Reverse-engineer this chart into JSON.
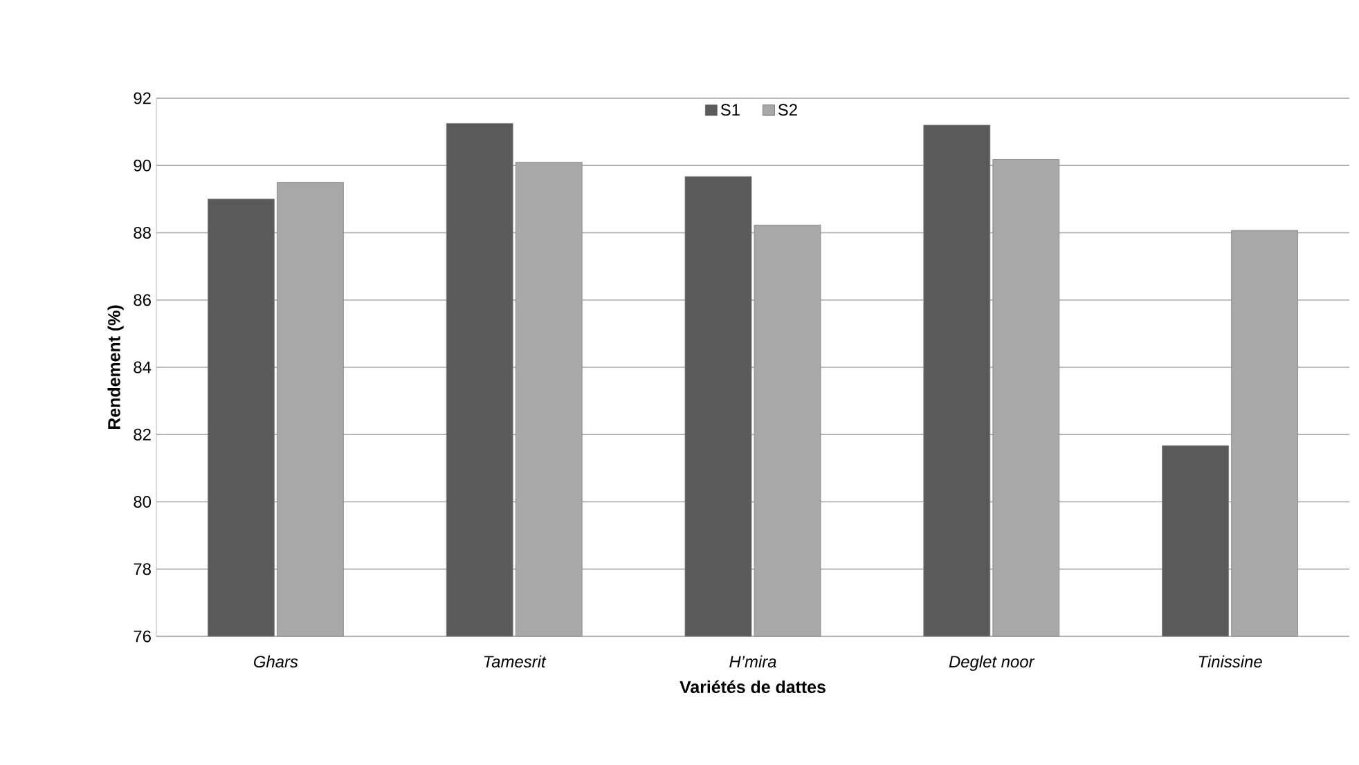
{
  "chart_data": {
    "type": "bar",
    "xlabel": "Variétés de dattes",
    "ylabel": "Rendement (%)",
    "categories": [
      "Ghars",
      "Tamesrit",
      "H’mira",
      "Deglet noor",
      "Tinissine"
    ],
    "series": [
      {
        "name": "S1",
        "color": "#5a5a5a",
        "values": [
          89.0,
          91.25,
          89.67,
          91.2,
          81.67
        ]
      },
      {
        "name": "S2",
        "color": "#a8a8a8",
        "values": [
          89.5,
          90.1,
          88.23,
          90.18,
          88.07
        ]
      }
    ],
    "ylim": [
      76,
      92
    ],
    "yticks": [
      76,
      78,
      80,
      82,
      84,
      86,
      88,
      90,
      92
    ],
    "grid": "y",
    "legend": "top"
  }
}
